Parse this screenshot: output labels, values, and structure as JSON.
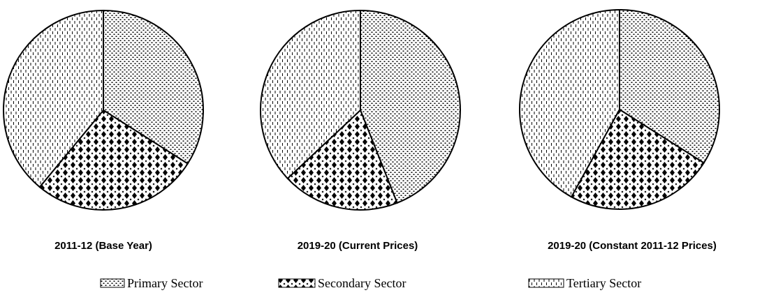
{
  "chart_data": [
    {
      "type": "pie",
      "title": "2011-12 (Base Year)",
      "values": [
        34,
        27,
        39
      ]
    },
    {
      "type": "pie",
      "title": "2019-20 (Current Prices)",
      "values": [
        44,
        19,
        37
      ]
    },
    {
      "type": "pie",
      "title": "2019-20 (Constant 2011-12 Prices)",
      "values": [
        34,
        24,
        42
      ]
    }
  ],
  "legend": {
    "names": [
      "Primary Sector",
      "Secondary Sector",
      "Tertiary Sector"
    ],
    "patterns": [
      "dots",
      "crosses",
      "vlines"
    ]
  }
}
